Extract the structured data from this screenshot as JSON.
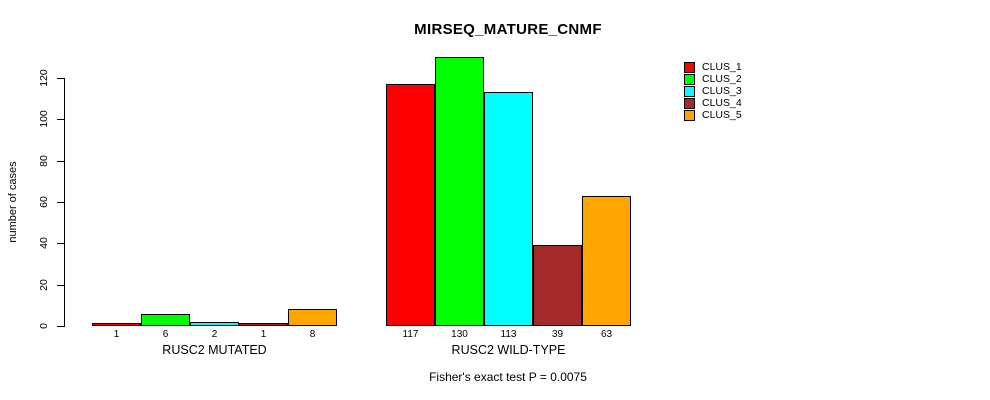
{
  "chart_data": {
    "type": "bar",
    "title": "MIRSEQ_MATURE_CNMF",
    "ylabel": "number of cases",
    "xlabel": "",
    "annotation": "Fisher's exact test P = 0.0075",
    "ylim": [
      0,
      130
    ],
    "yticks": [
      0,
      20,
      40,
      60,
      80,
      100,
      120
    ],
    "grid": false,
    "legend_position": "top-right-outside",
    "background_color": "#ffffff",
    "bar_border_color": "#000000",
    "series": [
      {
        "name": "CLUS_1",
        "color": "#FF0000"
      },
      {
        "name": "CLUS_2",
        "color": "#00FF00"
      },
      {
        "name": "CLUS_3",
        "color": "#00FFFF"
      },
      {
        "name": "CLUS_4",
        "color": "#A52A2A"
      },
      {
        "name": "CLUS_5",
        "color": "#FFA500"
      }
    ],
    "groups": [
      {
        "label": "RUSC2 MUTATED",
        "values": [
          1,
          6,
          2,
          1,
          8
        ]
      },
      {
        "label": "RUSC2 WILD-TYPE",
        "values": [
          117,
          130,
          113,
          39,
          63
        ]
      }
    ],
    "bar_value_labels": [
      [
        "1",
        "6",
        "2",
        "1",
        "8"
      ],
      [
        "117",
        "130",
        "113",
        "39",
        "63"
      ]
    ]
  }
}
